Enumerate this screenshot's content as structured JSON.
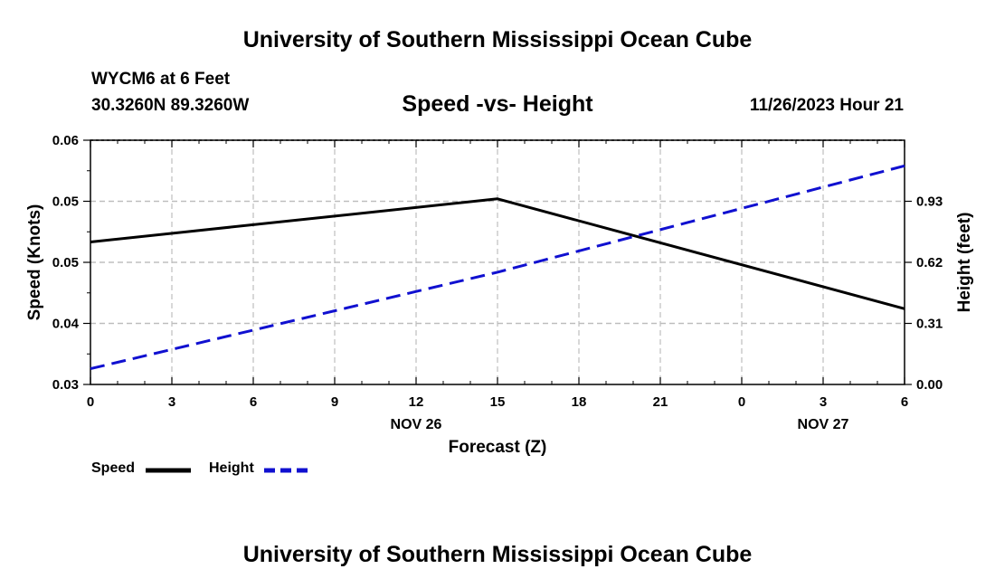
{
  "header": {
    "main_title": "University of Southern Mississippi Ocean Cube",
    "station": "WYCM6 at 6 Feet",
    "coords": "30.3260N  89.3260W",
    "datetime": "11/26/2023 Hour 21",
    "footer_title": "University of Southern Mississippi Ocean Cube"
  },
  "legend": {
    "speed_label": "Speed",
    "height_label": "Height"
  },
  "chart_data": {
    "type": "line",
    "title": "Speed -vs- Height",
    "xlabel": "Forecast (Z)",
    "ylabel": "Speed (Knots)",
    "y2label": "Height (feet)",
    "x": [
      0,
      15,
      30
    ],
    "x_tick_labels": [
      "0",
      "3",
      "6",
      "9",
      "12",
      "15",
      "18",
      "21",
      "0",
      "3",
      "6"
    ],
    "date_labels": [
      {
        "text": "NOV 26",
        "tick_index": 4
      },
      {
        "text": "NOV 27",
        "tick_index": 9
      }
    ],
    "ylim": [
      0.03,
      0.06
    ],
    "y_tick_labels": [
      "0.03",
      "0.04",
      "0.05",
      "0.05",
      "0.06"
    ],
    "y2lim": [
      0.0,
      1.24
    ],
    "y2_ticks": [
      0.0,
      0.31,
      0.62,
      0.93
    ],
    "y2_tick_labels": [
      "0.00",
      "0.31",
      "0.62",
      "0.93"
    ],
    "grid": true,
    "series": [
      {
        "name": "Speed",
        "axis": "left",
        "color": "#000000",
        "style": "solid",
        "values": [
          0.0475,
          0.0528,
          0.0393
        ]
      },
      {
        "name": "Height",
        "axis": "right",
        "color": "#1010d0",
        "style": "dashed",
        "values": [
          0.08,
          0.57,
          1.11
        ]
      }
    ]
  }
}
